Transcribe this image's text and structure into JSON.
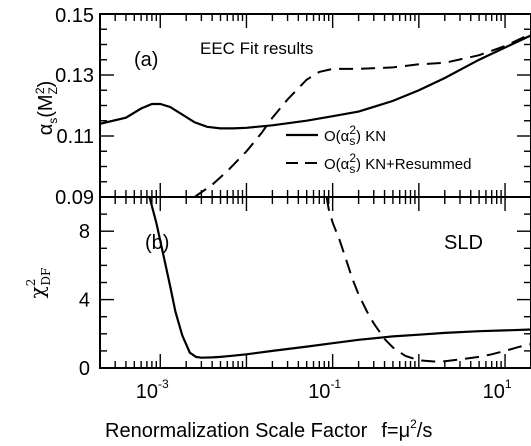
{
  "chart_data": [
    {
      "type": "line",
      "panel_label": "(a)",
      "annotation": "EEC Fit results",
      "xscale": "log",
      "xlim": [
        0.0002,
        20
      ],
      "ylim": [
        0.09,
        0.15
      ],
      "ytick_labels": [
        "0.09",
        "0.11",
        "0.13",
        "0.15"
      ],
      "yticks": [
        0.09,
        0.11,
        0.13,
        0.15
      ],
      "ylabel_text": "α",
      "ylabel_sub": "s",
      "ylabel_rest": "(M",
      "ylabel_sub2": "Z",
      "ylabel_sup2": "2",
      "ylabel_close": ")",
      "legend_loc": "lower-right",
      "series": [
        {
          "name": "O(α_s^2) KN",
          "legend_prefix": "O(α",
          "legend_sub": "s",
          "legend_sup": "2",
          "legend_suffix": ") KN",
          "style": "solid",
          "x": [
            0.0002,
            0.0004,
            0.0006,
            0.0008,
            0.001,
            0.0013,
            0.0018,
            0.0025,
            0.0035,
            0.005,
            0.007,
            0.01,
            0.02,
            0.05,
            0.1,
            0.2,
            0.5,
            1,
            2,
            5,
            10,
            20
          ],
          "y": [
            0.114,
            0.116,
            0.119,
            0.1205,
            0.1205,
            0.1195,
            0.117,
            0.1145,
            0.113,
            0.1125,
            0.1125,
            0.1127,
            0.1135,
            0.115,
            0.1165,
            0.118,
            0.1215,
            0.125,
            0.129,
            0.135,
            0.139,
            0.143
          ]
        },
        {
          "name": "O(α_s^2) KN+Resummed",
          "legend_prefix": "O(α",
          "legend_sub": "s",
          "legend_sup": "2",
          "legend_suffix": ") KN+Resummed",
          "style": "dashed",
          "x": [
            0.0025,
            0.004,
            0.006,
            0.01,
            0.015,
            0.02,
            0.03,
            0.05,
            0.07,
            0.1,
            0.2,
            0.5,
            1,
            2,
            5,
            10,
            20
          ],
          "y": [
            0.09,
            0.094,
            0.0985,
            0.105,
            0.111,
            0.116,
            0.122,
            0.1285,
            0.131,
            0.132,
            0.132,
            0.1325,
            0.1335,
            0.134,
            0.1365,
            0.1395,
            0.1435
          ]
        }
      ]
    },
    {
      "type": "line",
      "panel_label": "(b)",
      "annotation": "SLD",
      "xscale": "log",
      "xlim": [
        0.0002,
        20
      ],
      "ylim": [
        0,
        10
      ],
      "yticks": [
        0,
        4,
        8
      ],
      "ytick_labels": [
        "0",
        "4",
        "8"
      ],
      "xticks": [
        0.001,
        0.1,
        10
      ],
      "xtick_base": "10",
      "xtick_exps": [
        "-3",
        "-1",
        "1"
      ],
      "ylabel_text": "χ",
      "ylabel_sup": "2",
      "ylabel_sub": "DF",
      "xlabel": "Renormalization Scale Factor",
      "xlabel_formula_prefix": "f=μ",
      "xlabel_formula_sup": "2",
      "xlabel_formula_suffix": "/s",
      "series": [
        {
          "name": "O(α_s^2) KN",
          "style": "solid",
          "x": [
            0.00075,
            0.0009,
            0.0011,
            0.0013,
            0.0015,
            0.0018,
            0.0022,
            0.0026,
            0.003,
            0.004,
            0.005,
            0.007,
            0.01,
            0.02,
            0.05,
            0.1,
            0.2,
            0.5,
            1,
            2,
            5,
            10,
            20
          ],
          "y": [
            10,
            8.5,
            6.5,
            4.8,
            3.3,
            1.9,
            0.9,
            0.65,
            0.6,
            0.62,
            0.65,
            0.72,
            0.8,
            1.0,
            1.25,
            1.45,
            1.65,
            1.85,
            1.95,
            2.05,
            2.15,
            2.2,
            2.25
          ]
        },
        {
          "name": "O(α_s^2) KN+Resummed",
          "style": "dashed",
          "x": [
            0.085,
            0.09,
            0.1,
            0.12,
            0.14,
            0.17,
            0.2,
            0.25,
            0.3,
            0.4,
            0.5,
            0.7,
            1,
            1.5,
            2,
            3,
            5,
            7,
            10,
            15,
            20
          ],
          "y": [
            10,
            9.3,
            8.5,
            7.5,
            6.5,
            5.2,
            4.3,
            3.3,
            2.6,
            1.7,
            1.2,
            0.7,
            0.45,
            0.38,
            0.4,
            0.5,
            0.65,
            0.8,
            1.0,
            1.25,
            1.4
          ]
        }
      ]
    }
  ]
}
